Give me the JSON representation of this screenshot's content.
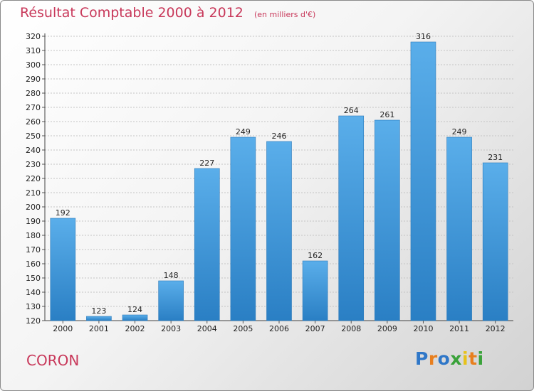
{
  "title": "Résultat Comptable 2000 à 2012",
  "unit_note": "(en milliers d'€)",
  "city": "CORON",
  "logo": {
    "text": "Proxiti",
    "letters": [
      "P",
      "r",
      "o",
      "x",
      "i",
      "t",
      "i"
    ],
    "colors": [
      "#2f77c8",
      "#e87f1e",
      "#2f77c8",
      "#3aa23a",
      "#e7c21a",
      "#e87f1e",
      "#3aa23a"
    ]
  },
  "colors": {
    "bar_light": "#5aaeea",
    "bar_dark": "#2a7fc4",
    "title": "#c8385a"
  },
  "chart_data": {
    "type": "bar",
    "categories": [
      "2000",
      "2001",
      "2002",
      "2003",
      "2004",
      "2005",
      "2006",
      "2007",
      "2008",
      "2009",
      "2010",
      "2011",
      "2012"
    ],
    "values": [
      192,
      123,
      124,
      148,
      227,
      249,
      246,
      162,
      264,
      261,
      316,
      249,
      231
    ],
    "ylim": [
      120,
      320
    ],
    "yticks": [
      120,
      130,
      140,
      150,
      160,
      170,
      180,
      190,
      200,
      210,
      220,
      230,
      240,
      250,
      260,
      270,
      280,
      290,
      300,
      310,
      320
    ],
    "grid": true,
    "xlabel": "",
    "ylabel": ""
  }
}
